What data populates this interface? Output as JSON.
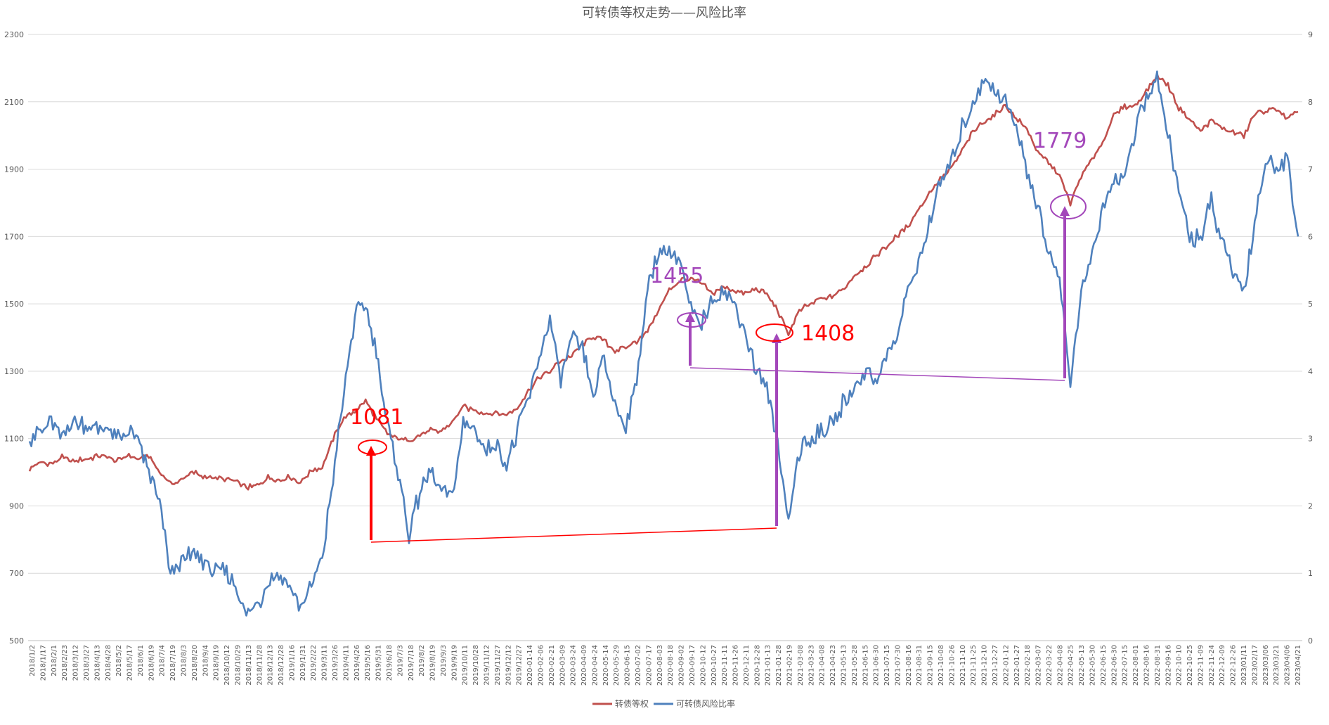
{
  "chart_data": {
    "type": "line",
    "title": "可转债等权走势——风险比率",
    "grid": true,
    "legend_position": "bottom",
    "y_left": {
      "ylim": [
        500,
        2300
      ],
      "ticks": [
        "500",
        "700",
        "900",
        "1100",
        "1300",
        "1500",
        "1700",
        "1900",
        "2100",
        "2300"
      ]
    },
    "y_right": {
      "ylim": [
        0,
        9
      ],
      "ticks": [
        "0",
        "1",
        "2",
        "3",
        "4",
        "5",
        "6",
        "7",
        "8",
        "9"
      ]
    },
    "x_ticks": [
      "2018/1/2",
      "2018/1/17",
      "2018/2/1",
      "2018/2/23",
      "2018/3/12",
      "2018/3/27",
      "2018/4/13",
      "2018/4/28",
      "2018/5/2",
      "2018/5/17",
      "2018/6/1",
      "2018/6/19",
      "2018/7/4",
      "2018/7/19",
      "2018/8/3",
      "2018/8/20",
      "2018/9/4",
      "2018/9/19",
      "2018/10/12",
      "2018/10/29",
      "2018/11/13",
      "2018/11/28",
      "2018/12/13",
      "2018/12/28",
      "2019/1/16",
      "2019/1/31",
      "2019/2/22",
      "2019/3/11",
      "2019/3/26",
      "2019/4/11",
      "2019/4/26",
      "2019/5/16",
      "2019/5/31",
      "2019/6/18",
      "2019/7/3",
      "2019/7/18",
      "2019/8/2",
      "2019/8/19",
      "2019/9/3",
      "2019/9/19",
      "2019/10/11",
      "2019/10/28",
      "2019/11/12",
      "2019/11/27",
      "2019/12/12",
      "2019/12/27",
      "2020-01-14",
      "2020-02-06",
      "2020-02-21",
      "2020-03-09",
      "2020-03-24",
      "2020-04-09",
      "2020-04-24",
      "2020-05-14",
      "2020-05-29",
      "2020-06-15",
      "2020-07-02",
      "2020-07-17",
      "2020-08-03",
      "2020-08-18",
      "2020-09-02",
      "2020-09-17",
      "2020-10-12",
      "2020-10-27",
      "2020-11-11",
      "2020-11-26",
      "2020-12-11",
      "2020-12-28",
      "2021-01-13",
      "2021-01-28",
      "2021-02-19",
      "2021-03-08",
      "2021-03-23",
      "2021-04-08",
      "2021-04-23",
      "2021-05-13",
      "2021-05-28",
      "2021-06-15",
      "2021-06-30",
      "2021-07-15",
      "2021-07-30",
      "2021-08-16",
      "2021-08-31",
      "2021-09-15",
      "2021-10-08",
      "2021-10-26",
      "2021-11-10",
      "2021-11-25",
      "2021-12-10",
      "2021-12-27",
      "2022-01-12",
      "2022-01-27",
      "2022-02-18",
      "2022-03-07",
      "2022-03-22",
      "2022-04-08",
      "2022-04-25",
      "2022-05-13",
      "2022-05-30",
      "2022-06-15",
      "2022-06-30",
      "2022-07-15",
      "2022-08-01",
      "2022-08-16",
      "2022-08-31",
      "2022-09-16",
      "2022-10-10",
      "2022-10-25",
      "2022-11-09",
      "2022-11-24",
      "2022-12-09",
      "2022-12-26",
      "2023/01/11",
      "2023/02/17",
      "2023/03/06",
      "2023/03/21",
      "2023/04/06",
      "2023/04/21"
    ],
    "series": [
      {
        "name": "转债等权",
        "axis": "left",
        "color": "#C0504D",
        "values": [
          1010,
          1030,
          1025,
          1045,
          1030,
          1040,
          1045,
          1048,
          1035,
          1050,
          1040,
          1048,
          1000,
          965,
          975,
          1005,
          985,
          985,
          980,
          975,
          955,
          960,
          985,
          975,
          985,
          970,
          1005,
          1015,
          1100,
          1160,
          1180,
          1210,
          1160,
          1115,
          1100,
          1095,
          1110,
          1125,
          1120,
          1150,
          1195,
          1185,
          1175,
          1175,
          1170,
          1190,
          1240,
          1280,
          1300,
          1330,
          1345,
          1380,
          1400,
          1390,
          1360,
          1370,
          1390,
          1420,
          1480,
          1540,
          1570,
          1575,
          1560,
          1530,
          1550,
          1540,
          1530,
          1545,
          1530,
          1480,
          1410,
          1480,
          1500,
          1515,
          1520,
          1545,
          1580,
          1610,
          1640,
          1670,
          1700,
          1730,
          1780,
          1830,
          1870,
          1900,
          1955,
          2010,
          2040,
          2060,
          2090,
          2050,
          2020,
          1950,
          1920,
          1880,
          1800,
          1880,
          1930,
          1980,
          2060,
          2085,
          2090,
          2130,
          2175,
          2150,
          2080,
          2050,
          2010,
          2045,
          2020,
          2010,
          2000,
          2065,
          2070,
          2080,
          2050,
          2070
        ]
      },
      {
        "name": "可转债风险比率",
        "axis": "right",
        "color": "#4F81BD",
        "values": [
          3.0,
          3.1,
          3.2,
          3.0,
          3.3,
          3.2,
          3.1,
          3.2,
          3.0,
          3.1,
          3.0,
          2.5,
          2.0,
          1.0,
          1.2,
          1.3,
          1.2,
          1.0,
          1.0,
          0.8,
          0.4,
          0.5,
          0.9,
          1.0,
          0.8,
          0.5,
          0.8,
          1.2,
          2.4,
          3.7,
          4.8,
          5.0,
          4.3,
          3.2,
          2.5,
          1.6,
          2.2,
          2.5,
          2.2,
          2.1,
          3.2,
          3.2,
          2.8,
          2.9,
          2.6,
          3.1,
          3.6,
          4.2,
          4.8,
          3.8,
          4.5,
          4.3,
          3.6,
          4.2,
          3.5,
          3.2,
          3.9,
          5.2,
          5.8,
          5.8,
          5.6,
          4.9,
          4.7,
          5.1,
          5.2,
          5.0,
          4.6,
          4.0,
          3.8,
          2.9,
          1.8,
          2.8,
          3.0,
          3.1,
          3.2,
          3.5,
          3.7,
          4.0,
          3.9,
          4.2,
          4.5,
          5.2,
          5.6,
          6.2,
          6.8,
          7.1,
          7.6,
          8.0,
          8.3,
          8.2,
          8.0,
          7.6,
          7.0,
          6.4,
          5.8,
          5.4,
          3.8,
          5.2,
          5.7,
          6.4,
          6.8,
          7.0,
          7.5,
          8.1,
          8.3,
          7.5,
          6.6,
          6.0,
          6.0,
          6.5,
          5.9,
          5.5,
          5.2,
          6.2,
          7.1,
          7.0,
          7.2,
          6.0
        ]
      }
    ],
    "annotations": {
      "labels": [
        {
          "text": "1081",
          "color": "#FF0000"
        },
        {
          "text": "1455",
          "color": "#A347BA"
        },
        {
          "text": "1408",
          "color": "#FF0000"
        },
        {
          "text": "1779",
          "color": "#A347BA"
        }
      ]
    }
  }
}
